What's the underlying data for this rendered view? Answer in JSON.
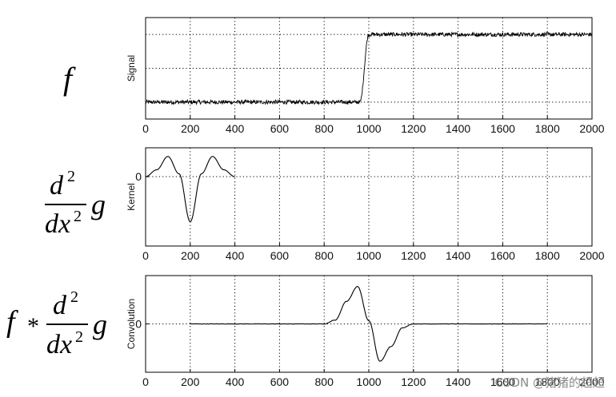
{
  "formulas": {
    "signal": "f",
    "kernel": {
      "num_d": "d",
      "num_exp": "2",
      "den_dx": "dx",
      "den_exp": "2",
      "fn": "g"
    },
    "convolution": {
      "prefix": "f",
      "op": "*",
      "num_d": "d",
      "num_exp": "2",
      "den_dx": "dx",
      "den_exp": "2",
      "fn": "g"
    }
  },
  "watermark": "CSDN @猪猪的超超",
  "chart_data": [
    {
      "type": "line",
      "ylabel": "Signal",
      "xlim": [
        0,
        2000
      ],
      "ylim": [
        -0.25,
        1.25
      ],
      "xticks": [
        "0",
        "200",
        "400",
        "600",
        "800",
        "1000",
        "1200",
        "1400",
        "1600",
        "1800",
        "2000"
      ],
      "yticks": [],
      "grid": true,
      "series": [
        {
          "x": [
            0,
            900,
            960,
            1000,
            2000
          ],
          "y": [
            0,
            0,
            0,
            1,
            1
          ],
          "noise": 0.03
        }
      ]
    },
    {
      "type": "line",
      "ylabel": "Kernel",
      "xlim": [
        0,
        2000
      ],
      "ylim": [
        -1.2,
        0.5
      ],
      "xticks": [
        "0",
        "200",
        "400",
        "600",
        "800",
        "1000",
        "1200",
        "1400",
        "1600",
        "1800",
        "2000"
      ],
      "yticks": [
        "0"
      ],
      "grid": true,
      "series": [
        {
          "x": [
            0,
            50,
            100,
            150,
            200,
            250,
            300,
            350,
            400
          ],
          "y": [
            0,
            0.12,
            0.35,
            0.05,
            -0.78,
            0.05,
            0.35,
            0.12,
            0
          ]
        }
      ]
    },
    {
      "type": "line",
      "ylabel": "Convolution",
      "xlim": [
        0,
        2000
      ],
      "ylim": [
        -0.75,
        0.75
      ],
      "xticks": [
        "0",
        "200",
        "400",
        "600",
        "800",
        "1000",
        "1200",
        "1400",
        "1600",
        "1800",
        "2000"
      ],
      "yticks": [
        "0"
      ],
      "grid": true,
      "series": [
        {
          "x": [
            200,
            800,
            850,
            900,
            950,
            1000,
            1050,
            1100,
            1150,
            1200,
            1800
          ],
          "y": [
            0,
            0,
            0.06,
            0.35,
            0.58,
            0.05,
            -0.58,
            -0.35,
            -0.06,
            0,
            0
          ],
          "noise": 0.003
        }
      ]
    }
  ]
}
